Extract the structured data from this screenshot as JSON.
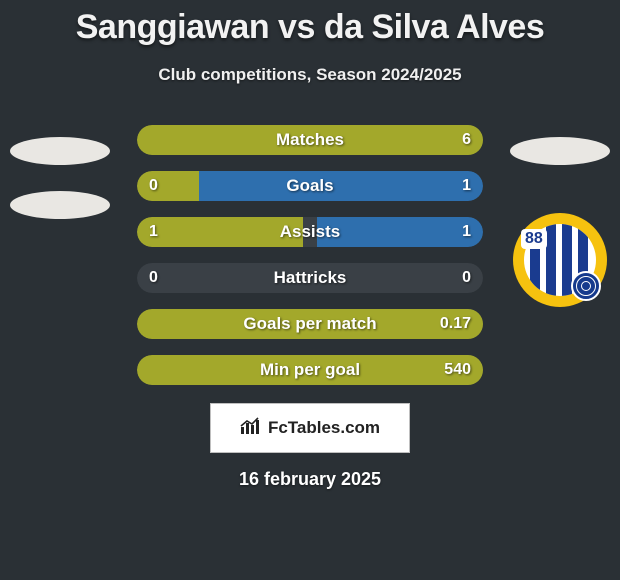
{
  "title": "Sanggiawan vs da Silva Alves",
  "subtitle": "Club competitions, Season 2024/2025",
  "date": "16 february 2025",
  "brand": "FcTables.com",
  "colors": {
    "left": "#a3a82b",
    "right": "#2e6fae",
    "track": "#3a4046"
  },
  "club_badge": {
    "number": "88"
  },
  "bars": [
    {
      "label": "Matches",
      "left": "",
      "right": "6",
      "left_pct": 100,
      "right_pct": 0,
      "show_left": false,
      "show_right": true
    },
    {
      "label": "Goals",
      "left": "0",
      "right": "1",
      "left_pct": 18,
      "right_pct": 82,
      "show_left": true,
      "show_right": true
    },
    {
      "label": "Assists",
      "left": "1",
      "right": "1",
      "left_pct": 48,
      "right_pct": 48,
      "show_left": true,
      "show_right": true
    },
    {
      "label": "Hattricks",
      "left": "0",
      "right": "0",
      "left_pct": 0,
      "right_pct": 0,
      "show_left": true,
      "show_right": true
    },
    {
      "label": "Goals per match",
      "left": "",
      "right": "0.17",
      "left_pct": 100,
      "right_pct": 0,
      "show_left": false,
      "show_right": true
    },
    {
      "label": "Min per goal",
      "left": "",
      "right": "540",
      "left_pct": 100,
      "right_pct": 0,
      "show_left": false,
      "show_right": true
    }
  ]
}
